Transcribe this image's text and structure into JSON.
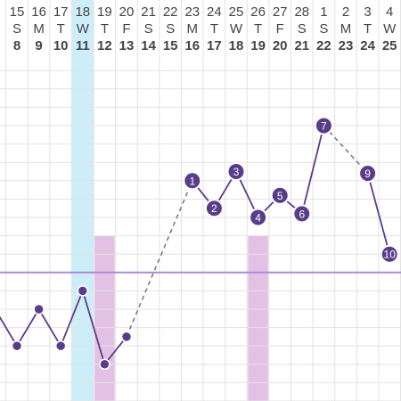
{
  "chart_data": {
    "type": "line",
    "title": "",
    "xlabel": "",
    "ylabel": "",
    "columns": [
      {
        "date": "15",
        "dow": "S",
        "cycle_day": "8"
      },
      {
        "date": "16",
        "dow": "M",
        "cycle_day": "9"
      },
      {
        "date": "17",
        "dow": "T",
        "cycle_day": "10"
      },
      {
        "date": "18",
        "dow": "W",
        "cycle_day": "11"
      },
      {
        "date": "19",
        "dow": "T",
        "cycle_day": "12"
      },
      {
        "date": "20",
        "dow": "F",
        "cycle_day": "13"
      },
      {
        "date": "21",
        "dow": "S",
        "cycle_day": "14"
      },
      {
        "date": "22",
        "dow": "S",
        "cycle_day": "15"
      },
      {
        "date": "23",
        "dow": "M",
        "cycle_day": "16"
      },
      {
        "date": "24",
        "dow": "T",
        "cycle_day": "17"
      },
      {
        "date": "25",
        "dow": "W",
        "cycle_day": "18"
      },
      {
        "date": "26",
        "dow": "T",
        "cycle_day": "19"
      },
      {
        "date": "27",
        "dow": "F",
        "cycle_day": "20"
      },
      {
        "date": "28",
        "dow": "S",
        "cycle_day": "21"
      },
      {
        "date": "1",
        "dow": "S",
        "cycle_day": "22"
      },
      {
        "date": "2",
        "dow": "M",
        "cycle_day": "23"
      },
      {
        "date": "3",
        "dow": "T",
        "cycle_day": "24"
      },
      {
        "date": "4",
        "dow": "W",
        "cycle_day": "25"
      }
    ],
    "partial_left_date": "14",
    "y_range": [
      0,
      19
    ],
    "coverline_level": 7,
    "highlight_column_date": "18",
    "highlight_color": "#cdeef8",
    "marker_columns": [
      "19",
      "26"
    ],
    "marker_height": 9,
    "marker_color": "#e3c1e4",
    "line_color": "#5a3d8a",
    "coverline_color": "#a98bd9",
    "point_color": "#5a3d8a",
    "point_outline": "#ffffff",
    "points": [
      {
        "x": "14",
        "y": 5,
        "label": ""
      },
      {
        "x": "15",
        "y": 3,
        "label": ""
      },
      {
        "x": "16",
        "y": 5,
        "label": ""
      },
      {
        "x": "17",
        "y": 3,
        "label": ""
      },
      {
        "x": "18",
        "y": 6,
        "label": ""
      },
      {
        "x": "19",
        "y": 2,
        "label": ""
      },
      {
        "x": "20",
        "y": 3.5,
        "label": ""
      },
      {
        "x": "23",
        "y": 12,
        "label": "1"
      },
      {
        "x": "24",
        "y": 10.5,
        "label": "2"
      },
      {
        "x": "25",
        "y": 12.5,
        "label": "3"
      },
      {
        "x": "26",
        "y": 10,
        "label": "4"
      },
      {
        "x": "27",
        "y": 11.2,
        "label": "5"
      },
      {
        "x": "28",
        "y": 10.2,
        "label": "6"
      },
      {
        "x": "1",
        "y": 15,
        "label": "7"
      },
      {
        "x": "3",
        "y": 12.4,
        "label": "9"
      },
      {
        "x": "4",
        "y": 8,
        "label": "10"
      }
    ],
    "dashed_segments": [
      [
        "20",
        "23"
      ],
      [
        "1",
        "3"
      ]
    ]
  }
}
